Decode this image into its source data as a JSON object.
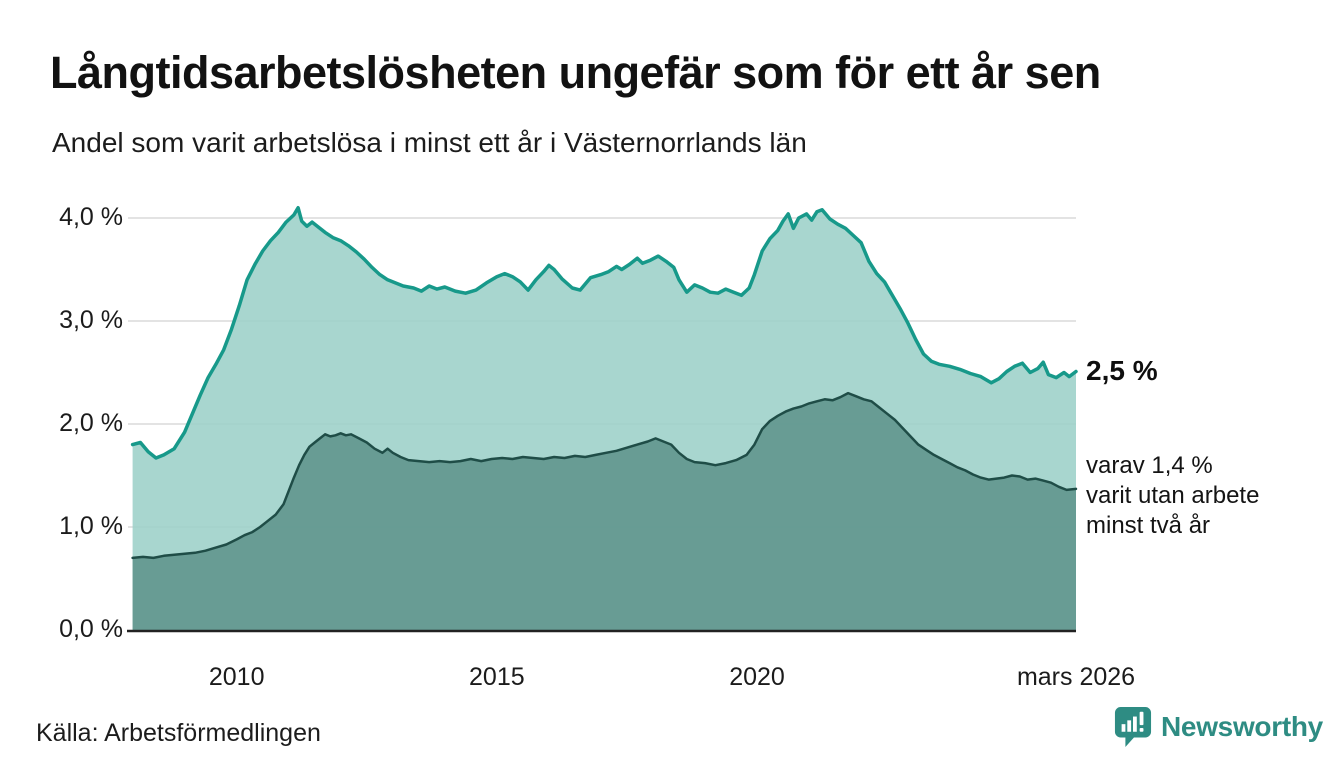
{
  "chart_data": {
    "type": "area",
    "title": "Långtidsarbetslösheten ungefär som för ett år sen",
    "subtitle": "Andel som varit arbetslösa i minst ett år i Västernorrlands län",
    "source": "Källa: Arbetsförmedlingen",
    "xlim": [
      2007.95,
      2026.13
    ],
    "ylim": [
      0,
      4.25
    ],
    "grid": "horizontal",
    "legend_position": "right-annotations",
    "y_ticks": [
      {
        "label": "4,0 %",
        "value": 4
      },
      {
        "label": "3,0 %",
        "value": 3
      },
      {
        "label": "2,0 %",
        "value": 2
      },
      {
        "label": "1,0 %",
        "value": 1
      },
      {
        "label": "0,0 %",
        "value": 0
      }
    ],
    "x_ticks": [
      {
        "label": "2010",
        "year": 2010
      },
      {
        "label": "2015",
        "year": 2015
      },
      {
        "label": "2020",
        "year": 2020
      },
      {
        "label": "mars 2026",
        "year": 2026.13
      }
    ],
    "series": [
      {
        "name": "arbetslösa minst ett år",
        "end_label": "2,5 %",
        "end_value": 2.5,
        "line_color": "#17998a",
        "fill_color": "#9cd0c8",
        "line_width": 3.5,
        "points": [
          [
            2008.0,
            1.8
          ],
          [
            2008.15,
            1.82
          ],
          [
            2008.3,
            1.73
          ],
          [
            2008.45,
            1.67
          ],
          [
            2008.6,
            1.7
          ],
          [
            2008.8,
            1.76
          ],
          [
            2009.0,
            1.92
          ],
          [
            2009.15,
            2.1
          ],
          [
            2009.3,
            2.28
          ],
          [
            2009.45,
            2.45
          ],
          [
            2009.6,
            2.58
          ],
          [
            2009.75,
            2.72
          ],
          [
            2009.9,
            2.92
          ],
          [
            2010.05,
            3.15
          ],
          [
            2010.2,
            3.4
          ],
          [
            2010.35,
            3.55
          ],
          [
            2010.5,
            3.68
          ],
          [
            2010.65,
            3.78
          ],
          [
            2010.8,
            3.86
          ],
          [
            2010.95,
            3.96
          ],
          [
            2011.1,
            4.03
          ],
          [
            2011.18,
            4.1
          ],
          [
            2011.25,
            3.97
          ],
          [
            2011.35,
            3.92
          ],
          [
            2011.45,
            3.96
          ],
          [
            2011.55,
            3.92
          ],
          [
            2011.7,
            3.86
          ],
          [
            2011.85,
            3.81
          ],
          [
            2012.0,
            3.78
          ],
          [
            2012.15,
            3.73
          ],
          [
            2012.3,
            3.67
          ],
          [
            2012.45,
            3.6
          ],
          [
            2012.6,
            3.52
          ],
          [
            2012.75,
            3.45
          ],
          [
            2012.9,
            3.4
          ],
          [
            2013.05,
            3.37
          ],
          [
            2013.2,
            3.34
          ],
          [
            2013.4,
            3.32
          ],
          [
            2013.55,
            3.29
          ],
          [
            2013.7,
            3.34
          ],
          [
            2013.85,
            3.31
          ],
          [
            2014.0,
            3.33
          ],
          [
            2014.2,
            3.29
          ],
          [
            2014.4,
            3.27
          ],
          [
            2014.6,
            3.3
          ],
          [
            2014.8,
            3.37
          ],
          [
            2015.0,
            3.43
          ],
          [
            2015.15,
            3.46
          ],
          [
            2015.3,
            3.43
          ],
          [
            2015.45,
            3.38
          ],
          [
            2015.6,
            3.3
          ],
          [
            2015.75,
            3.4
          ],
          [
            2015.9,
            3.48
          ],
          [
            2016.0,
            3.54
          ],
          [
            2016.1,
            3.5
          ],
          [
            2016.25,
            3.41
          ],
          [
            2016.45,
            3.32
          ],
          [
            2016.6,
            3.3
          ],
          [
            2016.8,
            3.42
          ],
          [
            2017.0,
            3.45
          ],
          [
            2017.15,
            3.48
          ],
          [
            2017.3,
            3.53
          ],
          [
            2017.4,
            3.5
          ],
          [
            2017.55,
            3.55
          ],
          [
            2017.7,
            3.61
          ],
          [
            2017.8,
            3.56
          ],
          [
            2017.95,
            3.59
          ],
          [
            2018.1,
            3.63
          ],
          [
            2018.25,
            3.58
          ],
          [
            2018.4,
            3.52
          ],
          [
            2018.5,
            3.4
          ],
          [
            2018.65,
            3.28
          ],
          [
            2018.8,
            3.35
          ],
          [
            2018.95,
            3.32
          ],
          [
            2019.1,
            3.28
          ],
          [
            2019.25,
            3.27
          ],
          [
            2019.4,
            3.31
          ],
          [
            2019.55,
            3.28
          ],
          [
            2019.7,
            3.25
          ],
          [
            2019.85,
            3.32
          ],
          [
            2019.95,
            3.45
          ],
          [
            2020.1,
            3.68
          ],
          [
            2020.25,
            3.8
          ],
          [
            2020.4,
            3.88
          ],
          [
            2020.5,
            3.97
          ],
          [
            2020.6,
            4.04
          ],
          [
            2020.7,
            3.9
          ],
          [
            2020.8,
            4.0
          ],
          [
            2020.95,
            4.04
          ],
          [
            2021.05,
            3.98
          ],
          [
            2021.15,
            4.06
          ],
          [
            2021.25,
            4.08
          ],
          [
            2021.4,
            3.99
          ],
          [
            2021.55,
            3.94
          ],
          [
            2021.7,
            3.9
          ],
          [
            2021.85,
            3.83
          ],
          [
            2022.0,
            3.76
          ],
          [
            2022.15,
            3.58
          ],
          [
            2022.3,
            3.46
          ],
          [
            2022.45,
            3.38
          ],
          [
            2022.6,
            3.25
          ],
          [
            2022.75,
            3.12
          ],
          [
            2022.9,
            2.98
          ],
          [
            2023.05,
            2.82
          ],
          [
            2023.2,
            2.68
          ],
          [
            2023.35,
            2.61
          ],
          [
            2023.5,
            2.58
          ],
          [
            2023.7,
            2.56
          ],
          [
            2023.9,
            2.53
          ],
          [
            2024.1,
            2.49
          ],
          [
            2024.3,
            2.46
          ],
          [
            2024.5,
            2.4
          ],
          [
            2024.65,
            2.44
          ],
          [
            2024.8,
            2.51
          ],
          [
            2024.95,
            2.56
          ],
          [
            2025.1,
            2.59
          ],
          [
            2025.25,
            2.5
          ],
          [
            2025.4,
            2.54
          ],
          [
            2025.5,
            2.6
          ],
          [
            2025.6,
            2.48
          ],
          [
            2025.75,
            2.45
          ],
          [
            2025.9,
            2.5
          ],
          [
            2026.0,
            2.46
          ],
          [
            2026.13,
            2.51
          ]
        ]
      },
      {
        "name": "varav utan arbete minst två år",
        "end_label": "varav 1,4 %\nvarit utan arbete\nminst två år",
        "end_value": 1.4,
        "line_color": "#1f4d47",
        "fill_color": "#5f948c",
        "line_width": 2.5,
        "points": [
          [
            2008.0,
            0.7
          ],
          [
            2008.2,
            0.71
          ],
          [
            2008.4,
            0.7
          ],
          [
            2008.6,
            0.72
          ],
          [
            2008.8,
            0.73
          ],
          [
            2009.0,
            0.74
          ],
          [
            2009.2,
            0.75
          ],
          [
            2009.4,
            0.77
          ],
          [
            2009.6,
            0.8
          ],
          [
            2009.8,
            0.83
          ],
          [
            2010.0,
            0.88
          ],
          [
            2010.15,
            0.92
          ],
          [
            2010.3,
            0.95
          ],
          [
            2010.45,
            1.0
          ],
          [
            2010.6,
            1.06
          ],
          [
            2010.75,
            1.12
          ],
          [
            2010.9,
            1.22
          ],
          [
            2011.0,
            1.35
          ],
          [
            2011.1,
            1.48
          ],
          [
            2011.2,
            1.6
          ],
          [
            2011.3,
            1.7
          ],
          [
            2011.4,
            1.78
          ],
          [
            2011.5,
            1.82
          ],
          [
            2011.6,
            1.86
          ],
          [
            2011.7,
            1.9
          ],
          [
            2011.8,
            1.88
          ],
          [
            2011.9,
            1.89
          ],
          [
            2012.0,
            1.91
          ],
          [
            2012.1,
            1.89
          ],
          [
            2012.2,
            1.9
          ],
          [
            2012.35,
            1.86
          ],
          [
            2012.5,
            1.82
          ],
          [
            2012.65,
            1.76
          ],
          [
            2012.8,
            1.72
          ],
          [
            2012.9,
            1.76
          ],
          [
            2013.0,
            1.72
          ],
          [
            2013.15,
            1.68
          ],
          [
            2013.3,
            1.65
          ],
          [
            2013.5,
            1.64
          ],
          [
            2013.7,
            1.63
          ],
          [
            2013.9,
            1.64
          ],
          [
            2014.1,
            1.63
          ],
          [
            2014.3,
            1.64
          ],
          [
            2014.5,
            1.66
          ],
          [
            2014.7,
            1.64
          ],
          [
            2014.9,
            1.66
          ],
          [
            2015.1,
            1.67
          ],
          [
            2015.3,
            1.66
          ],
          [
            2015.5,
            1.68
          ],
          [
            2015.7,
            1.67
          ],
          [
            2015.9,
            1.66
          ],
          [
            2016.1,
            1.68
          ],
          [
            2016.3,
            1.67
          ],
          [
            2016.5,
            1.69
          ],
          [
            2016.7,
            1.68
          ],
          [
            2016.9,
            1.7
          ],
          [
            2017.1,
            1.72
          ],
          [
            2017.3,
            1.74
          ],
          [
            2017.5,
            1.77
          ],
          [
            2017.7,
            1.8
          ],
          [
            2017.9,
            1.83
          ],
          [
            2018.05,
            1.86
          ],
          [
            2018.2,
            1.83
          ],
          [
            2018.35,
            1.8
          ],
          [
            2018.5,
            1.72
          ],
          [
            2018.65,
            1.66
          ],
          [
            2018.8,
            1.63
          ],
          [
            2019.0,
            1.62
          ],
          [
            2019.2,
            1.6
          ],
          [
            2019.4,
            1.62
          ],
          [
            2019.6,
            1.65
          ],
          [
            2019.8,
            1.7
          ],
          [
            2019.95,
            1.8
          ],
          [
            2020.1,
            1.95
          ],
          [
            2020.25,
            2.03
          ],
          [
            2020.4,
            2.08
          ],
          [
            2020.55,
            2.12
          ],
          [
            2020.7,
            2.15
          ],
          [
            2020.85,
            2.17
          ],
          [
            2021.0,
            2.2
          ],
          [
            2021.15,
            2.22
          ],
          [
            2021.3,
            2.24
          ],
          [
            2021.45,
            2.23
          ],
          [
            2021.6,
            2.26
          ],
          [
            2021.75,
            2.3
          ],
          [
            2021.9,
            2.27
          ],
          [
            2022.05,
            2.24
          ],
          [
            2022.2,
            2.22
          ],
          [
            2022.35,
            2.16
          ],
          [
            2022.5,
            2.1
          ],
          [
            2022.65,
            2.04
          ],
          [
            2022.8,
            1.96
          ],
          [
            2022.95,
            1.88
          ],
          [
            2023.1,
            1.8
          ],
          [
            2023.25,
            1.75
          ],
          [
            2023.4,
            1.7
          ],
          [
            2023.55,
            1.66
          ],
          [
            2023.7,
            1.62
          ],
          [
            2023.85,
            1.58
          ],
          [
            2024.0,
            1.55
          ],
          [
            2024.15,
            1.51
          ],
          [
            2024.3,
            1.48
          ],
          [
            2024.45,
            1.46
          ],
          [
            2024.6,
            1.47
          ],
          [
            2024.75,
            1.48
          ],
          [
            2024.9,
            1.5
          ],
          [
            2025.05,
            1.49
          ],
          [
            2025.2,
            1.46
          ],
          [
            2025.35,
            1.47
          ],
          [
            2025.5,
            1.45
          ],
          [
            2025.65,
            1.43
          ],
          [
            2025.8,
            1.39
          ],
          [
            2025.95,
            1.36
          ],
          [
            2026.13,
            1.37
          ]
        ]
      }
    ]
  },
  "colors": {
    "grid": "#e3e3e3",
    "axis": "#222222",
    "logo_teal": "#2e8c83",
    "background": "#ffffff"
  },
  "logo": {
    "text": "Newsworthy"
  }
}
